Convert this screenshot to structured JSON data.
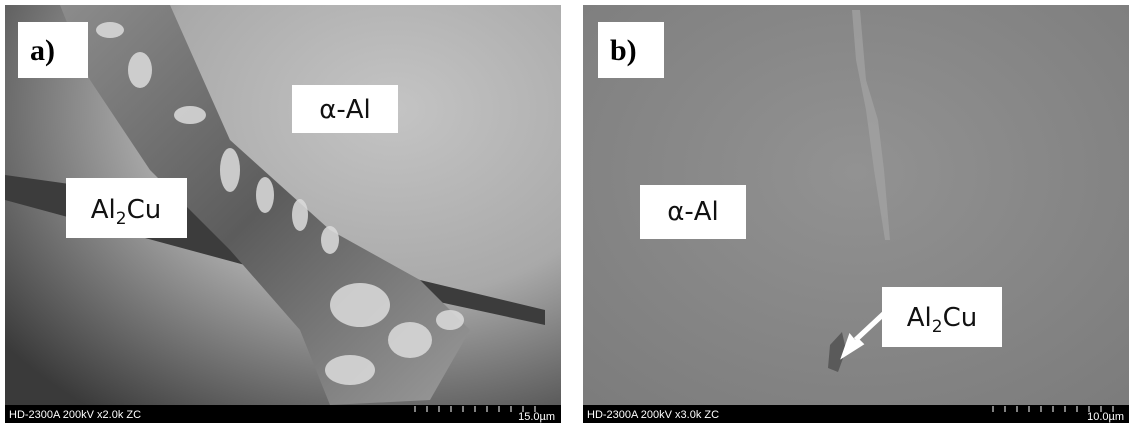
{
  "panels": [
    {
      "tag": "a)",
      "matrix_label": "α-Al",
      "phase_label": {
        "main": "Al",
        "sub": "2",
        "rest": "Cu"
      },
      "info": "HD-2300A 200kV x2.0k ZC",
      "scale": "15.0µm"
    },
    {
      "tag": "b)",
      "matrix_label": "α-Al",
      "phase_label": {
        "main": "Al",
        "sub": "2",
        "rest": "Cu"
      },
      "info": "HD-2300A 200kV x3.0k ZC",
      "scale": "10.0µm"
    }
  ]
}
